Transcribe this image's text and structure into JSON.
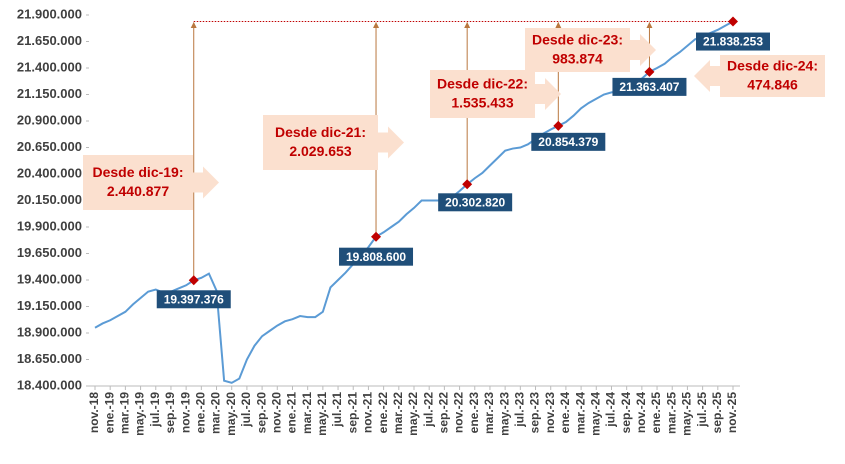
{
  "chart_data": {
    "type": "line",
    "color": "#5b9bd5",
    "marker_color": "#c00000",
    "label_box_color": "#1f4e79",
    "annotation_color": "#fbe0cf",
    "arrow_color": "#b9773f",
    "ylim": [
      18400000,
      21900000
    ],
    "yticks": [
      {
        "value": 18400000,
        "label": "18.400.000"
      },
      {
        "value": 18650000,
        "label": "18.650.000"
      },
      {
        "value": 18900000,
        "label": "18.900.000"
      },
      {
        "value": 19150000,
        "label": "19.150.000"
      },
      {
        "value": 19400000,
        "label": "19.400.000"
      },
      {
        "value": 19650000,
        "label": "19.650.000"
      },
      {
        "value": 19900000,
        "label": "19.900.000"
      },
      {
        "value": 20150000,
        "label": "20.150.000"
      },
      {
        "value": 20400000,
        "label": "20.400.000"
      },
      {
        "value": 20650000,
        "label": "20.650.000"
      },
      {
        "value": 20900000,
        "label": "20.900.000"
      },
      {
        "value": 21150000,
        "label": "21.150.000"
      },
      {
        "value": 21400000,
        "label": "21.400.000"
      },
      {
        "value": 21650000,
        "label": "21.650.000"
      },
      {
        "value": 21900000,
        "label": "21.900.000"
      }
    ],
    "categories": [
      "nov.-18",
      null,
      "ene.-19",
      null,
      "mar.-19",
      null,
      "may.-19",
      null,
      "jul.-19",
      null,
      "sep.-19",
      null,
      "nov.-19",
      null,
      "ene.-20",
      null,
      "mar.-20",
      null,
      "may.-20",
      null,
      "jul.-20",
      null,
      "sep.-20",
      null,
      "nov.-20",
      null,
      "ene.-21",
      null,
      "mar.-21",
      null,
      "may.-21",
      null,
      "jul.-21",
      null,
      "sep.-21",
      null,
      "nov.-21",
      null,
      "ene.-22",
      null,
      "mar.-22",
      null,
      "may.-22",
      null,
      "jul.-22",
      null,
      "sep.-22",
      null,
      "nov.-22",
      null,
      "ene.-23",
      null,
      "mar.-23",
      null,
      "may.-23",
      null,
      "jul.-23",
      null,
      "sep.-23",
      null,
      "nov.-23",
      null,
      "ene.-24",
      null,
      "mar.-24",
      null,
      "may.-24",
      null,
      "jul.-24",
      null,
      "sep.-24",
      null,
      "nov.-24",
      null,
      "ene.-25",
      null,
      "mar.-25",
      null,
      "may.-25",
      null,
      "jul.-25",
      null,
      "sep.-25",
      null,
      "nov.-25"
    ],
    "values": [
      18950000,
      18990000,
      19020000,
      19060000,
      19100000,
      19170000,
      19230000,
      19290000,
      19310000,
      19280000,
      19290000,
      19320000,
      19350000,
      19397376,
      19420000,
      19460000,
      19300000,
      18450000,
      18430000,
      18470000,
      18650000,
      18780000,
      18870000,
      18920000,
      18970000,
      19010000,
      19030000,
      19060000,
      19050000,
      19050000,
      19100000,
      19330000,
      19400000,
      19470000,
      19550000,
      19630000,
      19710000,
      19808600,
      19850000,
      19900000,
      19950000,
      20020000,
      20080000,
      20150000,
      20150000,
      20150000,
      20150000,
      20180000,
      20240000,
      20302820,
      20360000,
      20410000,
      20480000,
      20550000,
      20620000,
      20640000,
      20650000,
      20680000,
      20730000,
      20780000,
      20820000,
      20854379,
      20890000,
      20950000,
      21020000,
      21070000,
      21110000,
      21150000,
      21170000,
      21180000,
      21200000,
      21250000,
      21300000,
      21363407,
      21400000,
      21440000,
      21500000,
      21550000,
      21610000,
      21670000,
      21700000,
      21730000,
      21760000,
      21800000,
      21838253
    ],
    "value_labels": [
      null,
      null,
      null,
      null,
      null,
      null,
      null,
      null,
      null,
      null,
      null,
      null,
      null,
      "19.397.376",
      null,
      null,
      null,
      null,
      null,
      null,
      null,
      null,
      null,
      null,
      null,
      null,
      null,
      null,
      null,
      null,
      null,
      null,
      null,
      null,
      null,
      null,
      null,
      "19.808.600",
      null,
      null,
      null,
      null,
      null,
      null,
      null,
      null,
      null,
      null,
      null,
      "20.302.820",
      null,
      null,
      null,
      null,
      null,
      null,
      null,
      null,
      null,
      null,
      null,
      "20.854.379",
      null,
      null,
      null,
      null,
      null,
      null,
      null,
      null,
      null,
      null,
      null,
      "21.363.407",
      null,
      null,
      null,
      null,
      null,
      null,
      null,
      null,
      null,
      null,
      "21.838.253"
    ],
    "annotations": [
      {
        "label": "Desde dic-19:",
        "value": "2.440.877"
      },
      {
        "label": "Desde dic-21:",
        "value": "2.029.653"
      },
      {
        "label": "Desde dic-22:",
        "value": "1.535.433"
      },
      {
        "label": "Desde dic-23:",
        "value": "983.874"
      },
      {
        "label": "Desde dic-24:",
        "value": "474.846"
      }
    ]
  }
}
